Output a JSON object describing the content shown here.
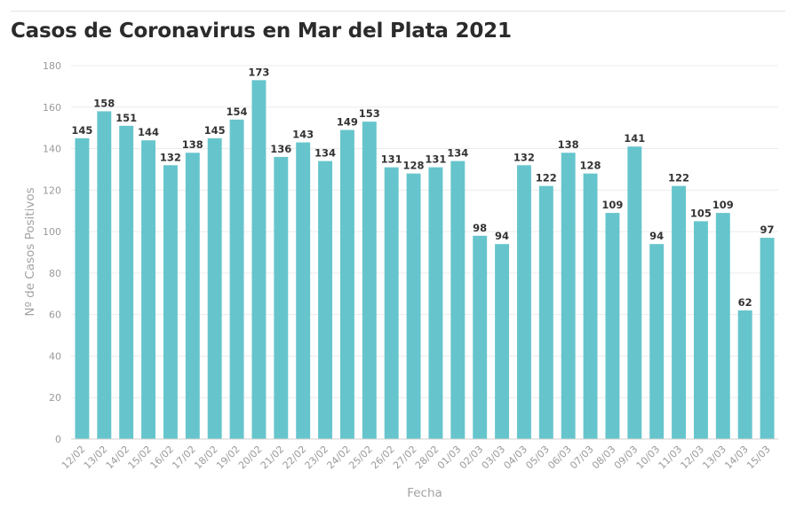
{
  "title": "Casos de Coronavirus en Mar del Plata 2021",
  "colors": {
    "bar": "#66c5cc",
    "grid": "#ececec",
    "axis": "#d0d0d0"
  },
  "chart_data": {
    "type": "bar",
    "title": "Casos de Coronavirus en Mar del Plata 2021",
    "xlabel": "Fecha",
    "ylabel": "Nº de Casos Positivos",
    "ylim": [
      0,
      180
    ],
    "yticks": [
      0,
      20,
      40,
      60,
      80,
      100,
      120,
      140,
      160,
      180
    ],
    "grid": true,
    "categories": [
      "12/02",
      "13/02",
      "14/02",
      "15/02",
      "16/02",
      "17/02",
      "18/02",
      "19/02",
      "20/02",
      "21/02",
      "22/02",
      "23/02",
      "24/02",
      "25/02",
      "26/02",
      "27/02",
      "28/02",
      "01/03",
      "02/03",
      "03/03",
      "04/03",
      "05/03",
      "06/03",
      "07/03",
      "08/03",
      "09/03",
      "10/03",
      "11/03",
      "12/03",
      "13/03",
      "14/03",
      "15/03"
    ],
    "values": [
      145,
      158,
      151,
      144,
      132,
      138,
      145,
      154,
      173,
      136,
      143,
      134,
      149,
      153,
      131,
      128,
      131,
      134,
      98,
      94,
      132,
      122,
      138,
      128,
      109,
      141,
      94,
      122,
      105,
      109,
      62,
      97
    ]
  }
}
